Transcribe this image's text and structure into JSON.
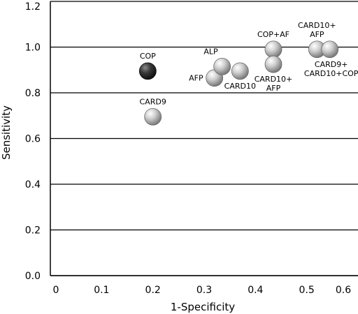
{
  "chart_data": {
    "type": "scatter",
    "xlabel": "1-Specificity",
    "ylabel": "Sensitivity",
    "xlim": [
      0,
      0.6
    ],
    "ylim": [
      0,
      1.2
    ],
    "xticks": [
      "0",
      "0.1",
      "0.2",
      "0.3",
      "0.4",
      "0.5",
      "0.6"
    ],
    "yticks": [
      "0.0",
      "0.2",
      "0.4",
      "0.6",
      "0.8",
      "1.0",
      "1.2"
    ],
    "grid": "horizontal",
    "points": [
      {
        "label": [
          "COP"
        ],
        "x": 0.19,
        "y": 0.895,
        "color": "#3a3a3a",
        "label_pos": "above"
      },
      {
        "label": [
          "CARD9"
        ],
        "x": 0.2,
        "y": 0.695,
        "color": "#b8b8b8",
        "label_pos": "above"
      },
      {
        "label": [
          "AFP"
        ],
        "x": 0.32,
        "y": 0.865,
        "color": "#b8b8b8",
        "label_pos": "left"
      },
      {
        "label": [
          "ALP"
        ],
        "x": 0.335,
        "y": 0.915,
        "color": "#b8b8b8",
        "label_pos": "above-left"
      },
      {
        "label": [
          "CARD10"
        ],
        "x": 0.37,
        "y": 0.895,
        "color": "#b8b8b8",
        "label_pos": "below"
      },
      {
        "label": [
          "COP+AF"
        ],
        "x": 0.435,
        "y": 0.99,
        "color": "#b8b8b8",
        "label_pos": "above"
      },
      {
        "label": [
          "CARD10+",
          "AFP"
        ],
        "x": 0.435,
        "y": 0.925,
        "color": "#b8b8b8",
        "label_pos": "below"
      },
      {
        "label": [
          "CARD10+",
          "AFP"
        ],
        "x": 0.52,
        "y": 0.99,
        "color": "#b8b8b8",
        "label_pos": "above"
      },
      {
        "label": [
          "CARD9+",
          "CARD10+COP"
        ],
        "x": 0.545,
        "y": 0.99,
        "color": "#b8b8b8",
        "label_pos": "below-right"
      }
    ]
  }
}
